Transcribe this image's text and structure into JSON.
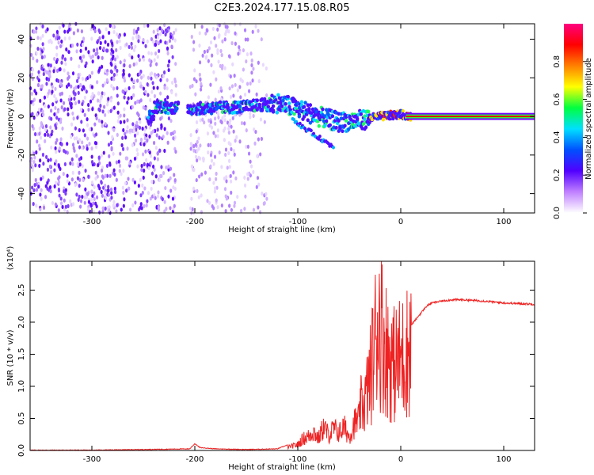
{
  "title": "C2E3.2024.177.15.08.R05",
  "chart_data": [
    {
      "type": "heatmap",
      "xlabel": "Height of straight line (km)",
      "ylabel": "Frequency (Hz)",
      "xlim": [
        -360,
        130
      ],
      "ylim": [
        -50,
        48
      ],
      "xticks": [
        -300,
        -200,
        -100,
        0,
        100
      ],
      "xtick_labels": [
        "-300",
        "-200",
        "-100",
        "0",
        "100"
      ],
      "yticks": [
        -40,
        -20,
        0,
        20,
        40
      ],
      "ytick_labels": [
        "-40",
        "-20",
        "0",
        "20",
        "40"
      ],
      "colorbar": {
        "label": "Normalized spectral amplitude",
        "range": [
          0,
          1
        ],
        "ticks": [
          0,
          0.2,
          0.4,
          0.6,
          0.8
        ],
        "tick_labels": [
          "0.0",
          "0.2",
          "0.4",
          "0.6",
          "0.8"
        ],
        "colors": [
          "#ffffff",
          "#c080ff",
          "#5000ff",
          "#0050ff",
          "#00e0ff",
          "#00ff40",
          "#ffff00",
          "#ff8000",
          "#ff0000",
          "#ff0080"
        ]
      },
      "description_points": {
        "noise_region_x": [
          -360,
          -130
        ],
        "signal_center": [
          [
            -240,
            5
          ],
          [
            -200,
            4
          ],
          [
            -150,
            5
          ],
          [
            -120,
            7
          ],
          [
            -100,
            4
          ],
          [
            -80,
            0
          ],
          [
            -60,
            -3
          ],
          [
            -40,
            -2
          ],
          [
            -20,
            0
          ],
          [
            0,
            1
          ],
          [
            10,
            0
          ],
          [
            130,
            0
          ]
        ],
        "gap_x": [
          -218,
          -205
        ]
      }
    },
    {
      "type": "line",
      "xlabel": "Height of straight line (km)",
      "ylabel": "SNR (10 * v/v)",
      "yunit_multiplier": "(x10⁴)",
      "xlim": [
        -360,
        130
      ],
      "ylim": [
        0,
        2.95
      ],
      "xticks": [
        -300,
        -200,
        -100,
        0,
        100
      ],
      "xtick_labels": [
        "-300",
        "-200",
        "-100",
        "0",
        "100"
      ],
      "yticks": [
        0,
        0.5,
        1,
        1.5,
        2,
        2.5
      ],
      "ytick_labels": [
        "0.0",
        "0.5",
        "1.0",
        "1.5",
        "2.0",
        "2.5"
      ],
      "color": "#ee2222",
      "series": [
        {
          "x": [
            -360,
            -300,
            -250,
            -205,
            -200,
            -195,
            -180,
            -150,
            -120,
            -110,
            -100,
            -95,
            -90,
            -85,
            -80,
            -75,
            -70,
            -65,
            -60,
            -55,
            -50,
            -45,
            -40,
            -35,
            -30,
            -26,
            -22,
            -18,
            -14,
            -10,
            -6,
            -2,
            2,
            6,
            10,
            15,
            20,
            25,
            30,
            40,
            50,
            60,
            80,
            100,
            130
          ],
          "y": [
            0.0,
            0.0,
            0.01,
            0.02,
            0.1,
            0.04,
            0.02,
            0.01,
            0.02,
            0.08,
            0.15,
            0.3,
            0.35,
            0.5,
            0.3,
            0.6,
            0.4,
            0.55,
            0.45,
            0.6,
            0.35,
            0.7,
            0.8,
            0.9,
            1.35,
            1.9,
            2.5,
            2.2,
            1.9,
            1.7,
            1.6,
            1.7,
            1.75,
            1.85,
            1.95,
            2.05,
            2.15,
            2.25,
            2.3,
            2.33,
            2.35,
            2.35,
            2.33,
            2.3,
            2.28
          ]
        }
      ]
    }
  ]
}
